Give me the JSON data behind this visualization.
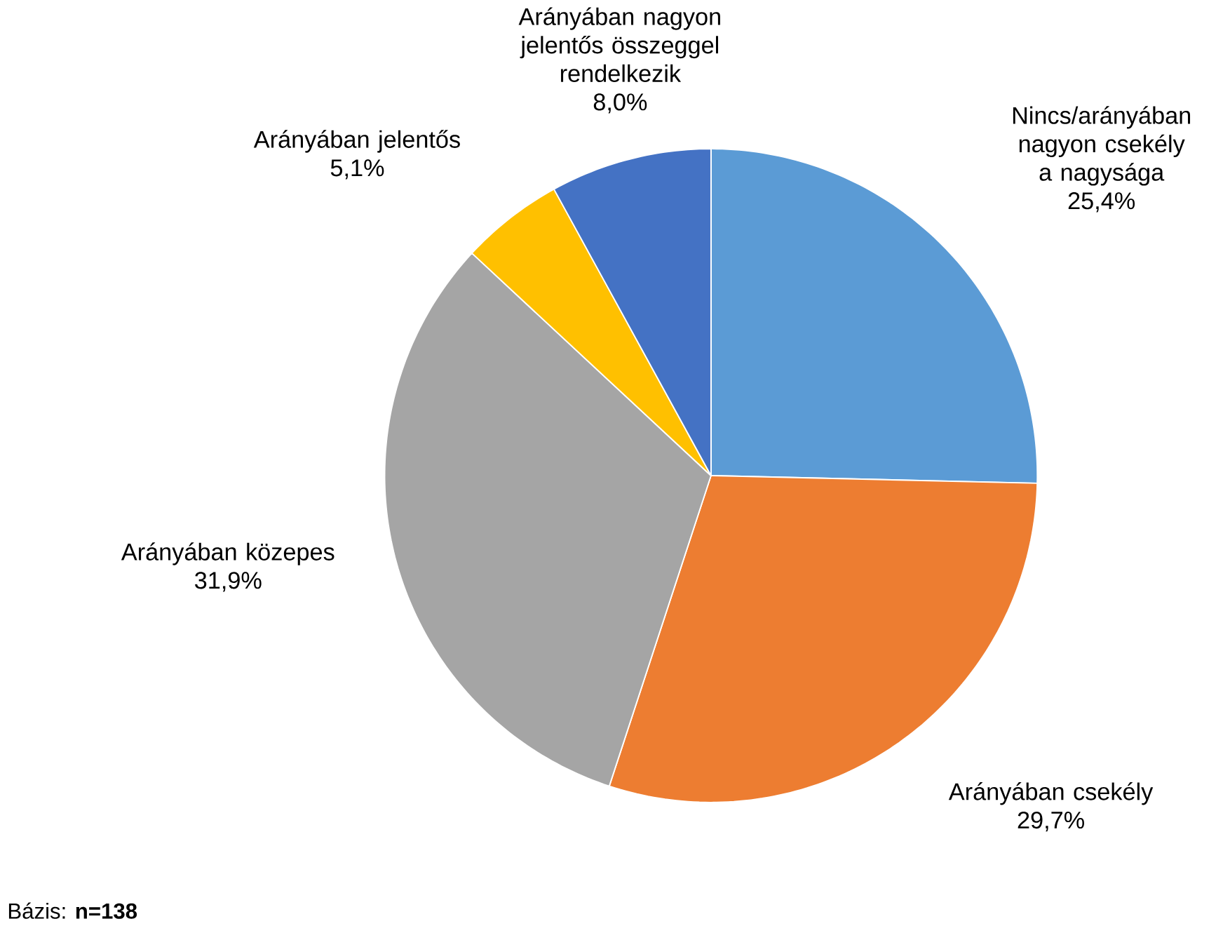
{
  "chart_data": {
    "type": "pie",
    "categories": [
      "Nincs/arányában nagyon csekély a nagysága",
      "Arányában csekély",
      "Arányában közepes",
      "Arányában jelentős",
      "Arányában nagyon jelentős összeggel rendelkezik"
    ],
    "values": [
      25.4,
      29.7,
      31.9,
      5.1,
      8.0
    ],
    "colors": [
      "#5b9bd5",
      "#ed7d31",
      "#a5a5a5",
      "#ffc000",
      "#4472c4"
    ],
    "value_labels": [
      "25,4%",
      "29,7%",
      "31,9%",
      "5,1%",
      "8,0%"
    ],
    "annotations": [
      "Bázis: **n=138**"
    ]
  }
}
